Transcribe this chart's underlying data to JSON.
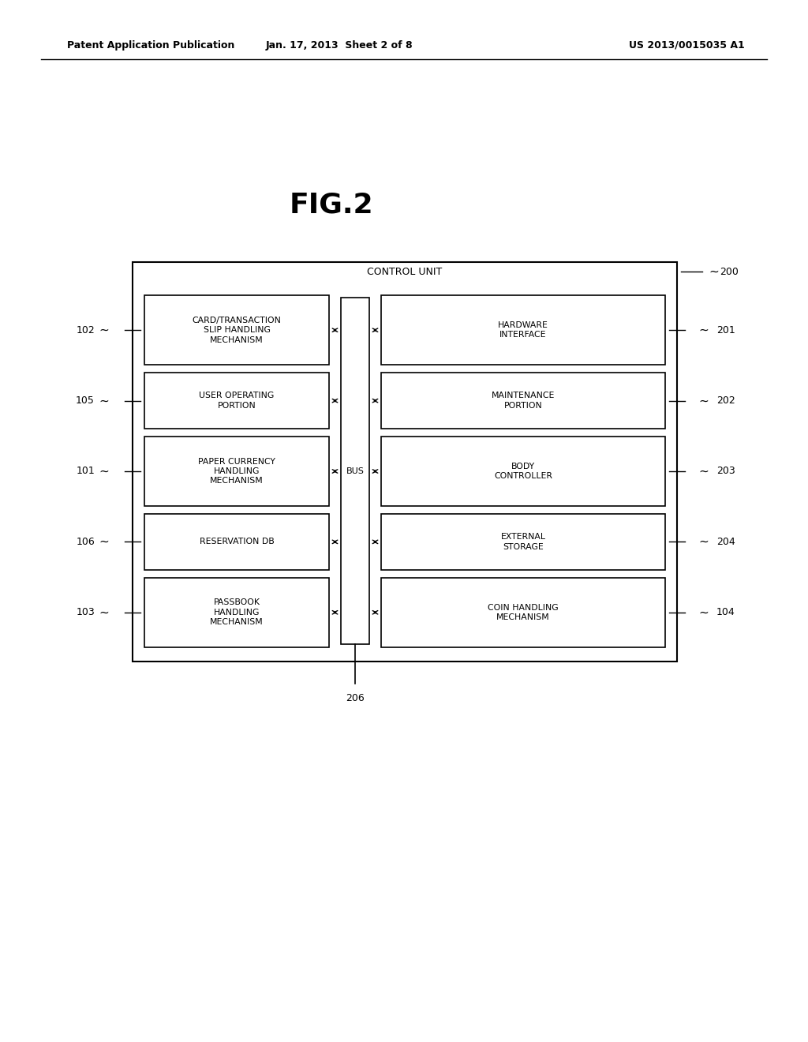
{
  "fig_title": "FIG.2",
  "header_left": "Patent Application Publication",
  "header_mid": "Jan. 17, 2013  Sheet 2 of 8",
  "header_right": "US 2013/0015035 A1",
  "bg_color": "#ffffff",
  "outer_box_label": "CONTROL UNIT",
  "outer_box_ref": "200",
  "bus_label": "BUS",
  "bottom_ref": "206",
  "left_boxes": [
    {
      "label": "CARD/TRANSACTION\nSLIP HANDLING\nMECHANISM",
      "ref": "102"
    },
    {
      "label": "USER OPERATING\nPORTION",
      "ref": "105"
    },
    {
      "label": "PAPER CURRENCY\nHANDLING\nMECHANISM",
      "ref": "101"
    },
    {
      "label": "RESERVATION DB",
      "ref": "106"
    },
    {
      "label": "PASSBOOK\nHANDLING\nMECHANISM",
      "ref": "103"
    }
  ],
  "right_boxes": [
    {
      "label": "HARDWARE\nINTERFACE",
      "ref": "201"
    },
    {
      "label": "MAINTENANCE\nPORTION",
      "ref": "202"
    },
    {
      "label": "BODY\nCONTROLLER",
      "ref": "203"
    },
    {
      "label": "EXTERNAL\nSTORAGE",
      "ref": "204"
    },
    {
      "label": "COIN HANDLING\nMECHANISM",
      "ref": "104"
    }
  ],
  "figsize": [
    10.24,
    13.2
  ],
  "dpi": 100
}
